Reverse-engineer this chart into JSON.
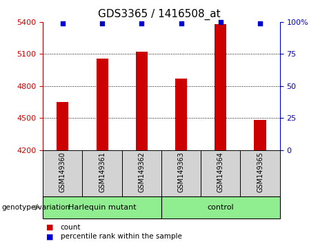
{
  "title": "GDS3365 / 1416508_at",
  "samples": [
    "GSM149360",
    "GSM149361",
    "GSM149362",
    "GSM149363",
    "GSM149364",
    "GSM149365"
  ],
  "counts": [
    4650,
    5060,
    5120,
    4870,
    5380,
    4480
  ],
  "percentiles": [
    99,
    99,
    99,
    99,
    100,
    99
  ],
  "ylim_left": [
    4200,
    5400
  ],
  "yticks_left": [
    4200,
    4500,
    4800,
    5100,
    5400
  ],
  "ylim_right": [
    0,
    100
  ],
  "yticks_right": [
    0,
    25,
    50,
    75,
    100
  ],
  "yticklabels_right": [
    "0",
    "25",
    "50",
    "75",
    "100%"
  ],
  "bar_color": "#cc0000",
  "dot_color": "#0000cc",
  "groups": [
    {
      "label": "Harlequin mutant",
      "start": 0,
      "end": 3,
      "color": "#90ee90"
    },
    {
      "label": "control",
      "start": 3,
      "end": 6,
      "color": "#90ee90"
    }
  ],
  "group_label": "genotype/variation",
  "legend_count_label": "count",
  "legend_percentile_label": "percentile rank within the sample",
  "tick_color_left": "#cc0000",
  "tick_color_right": "#0000cc",
  "label_box_color": "#d3d3d3",
  "bar_width": 0.3,
  "title_fontsize": 11,
  "tick_fontsize": 8,
  "sample_fontsize": 7,
  "group_fontsize": 8,
  "legend_fontsize": 7.5
}
